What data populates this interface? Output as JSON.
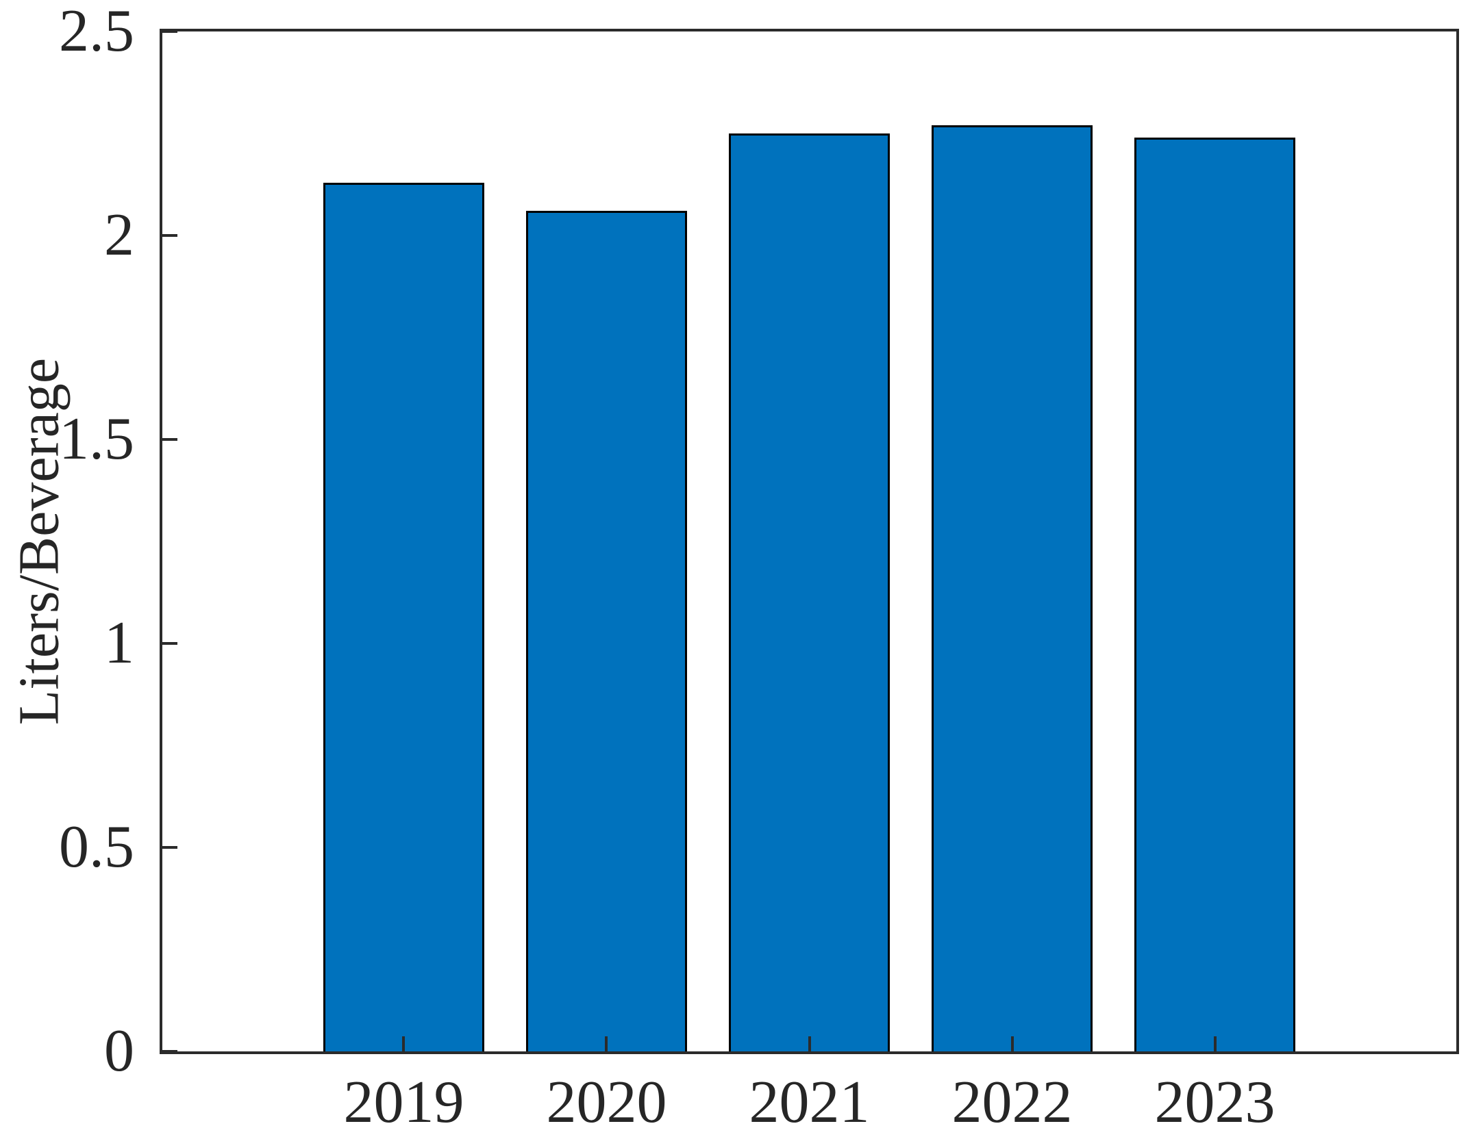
{
  "chart_data": {
    "type": "bar",
    "categories": [
      "2019",
      "2020",
      "2021",
      "2022",
      "2023"
    ],
    "values": [
      2.13,
      2.06,
      2.25,
      2.27,
      2.24
    ],
    "title": "",
    "xlabel": "",
    "ylabel": "Liters/Beverage",
    "ylim": [
      0,
      2.5
    ],
    "yticks": [
      0,
      0.5,
      1,
      1.5,
      2,
      2.5
    ],
    "ytick_labels": [
      "0",
      "0.5",
      "1",
      "1.5",
      "2",
      "2.5"
    ],
    "grid": false,
    "legend": null,
    "bar_color": "#0072BD",
    "bar_edge_color": "#000000",
    "axis_color": "#2b2b2b",
    "text_color": "#262626",
    "background_color": "#ffffff"
  }
}
